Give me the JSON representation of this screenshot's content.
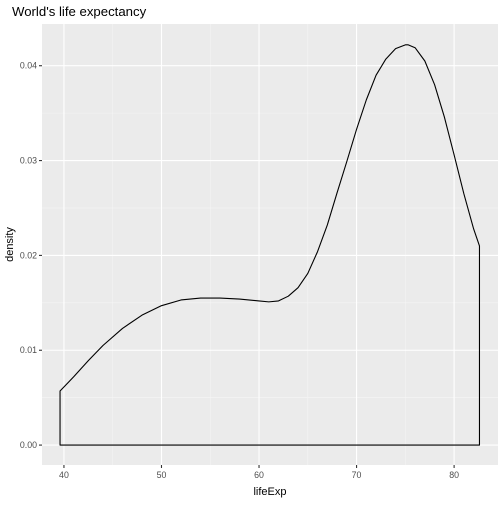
{
  "chart_data": {
    "type": "area",
    "title": "World's life expectancy",
    "xlabel": "lifeExp",
    "ylabel": "density",
    "xlim": [
      37.75,
      84.5
    ],
    "ylim": [
      -0.0021,
      0.0444
    ],
    "x_ticks": [
      40,
      50,
      60,
      70,
      80
    ],
    "y_ticks": [
      0.0,
      0.01,
      0.02,
      0.03,
      0.04
    ],
    "x_tick_labels": [
      "40",
      "50",
      "60",
      "70",
      "80"
    ],
    "y_tick_labels": [
      "0.00",
      "0.01",
      "0.02",
      "0.03",
      "0.04"
    ],
    "grid": true,
    "legend": "none",
    "colors": {
      "panel": "#EBEBEB",
      "grid_major": "#FFFFFF",
      "grid_minor": "#F5F5F5",
      "line": "#000000",
      "fill": "none"
    },
    "x": [
      39.6,
      41,
      42.5,
      44,
      46,
      48,
      50,
      52,
      54,
      56,
      58,
      60,
      61,
      62,
      63,
      64,
      65,
      66,
      67,
      68,
      69,
      70,
      71,
      72,
      73,
      74,
      75,
      75.3,
      76,
      77,
      78,
      79,
      80,
      81,
      82,
      82.6
    ],
    "y": [
      0.0057,
      0.0072,
      0.0089,
      0.0105,
      0.0123,
      0.0137,
      0.0147,
      0.0153,
      0.0155,
      0.0155,
      0.0154,
      0.0152,
      0.0151,
      0.0152,
      0.0157,
      0.0166,
      0.0181,
      0.0204,
      0.0232,
      0.0266,
      0.0299,
      0.0333,
      0.0364,
      0.039,
      0.0407,
      0.0418,
      0.0422,
      0.0422,
      0.0419,
      0.0405,
      0.038,
      0.0346,
      0.0306,
      0.0265,
      0.0228,
      0.021
    ]
  }
}
